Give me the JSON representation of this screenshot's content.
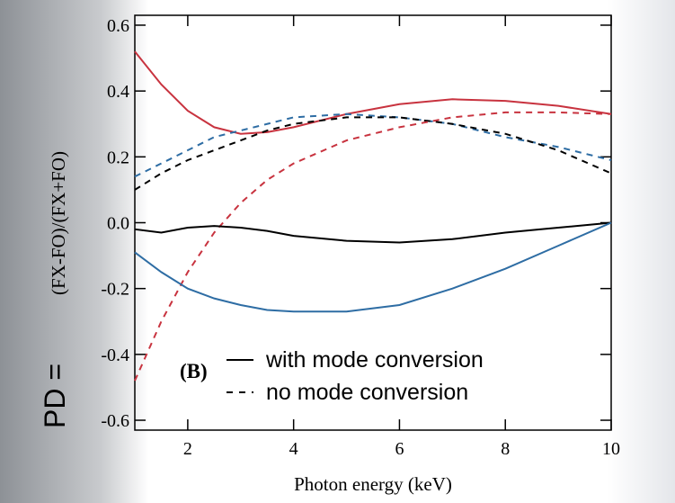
{
  "chart_data": {
    "type": "line",
    "x_label": "Photon energy (keV)",
    "y_label": "(FX-FO)/(FX+FO)",
    "y_prefix": "PD =",
    "annotation": "(B)",
    "legend": [
      {
        "label": "with mode conversion",
        "dash": "solid"
      },
      {
        "label": "no mode conversion",
        "dash": "dashed"
      }
    ],
    "x": [
      1,
      1.5,
      2,
      2.5,
      3,
      3.5,
      4,
      5,
      6,
      7,
      8,
      9,
      10
    ],
    "series": [
      {
        "color": "#c8333f",
        "dash": "solid",
        "values": [
          0.52,
          0.42,
          0.34,
          0.29,
          0.27,
          0.275,
          0.29,
          0.33,
          0.36,
          0.375,
          0.37,
          0.355,
          0.33
        ]
      },
      {
        "color": "#2e6da4",
        "dash": "dashed",
        "values": [
          0.14,
          0.18,
          0.22,
          0.26,
          0.28,
          0.3,
          0.32,
          0.33,
          0.32,
          0.3,
          0.26,
          0.23,
          0.19
        ]
      },
      {
        "color": "#000000",
        "dash": "dashed",
        "values": [
          0.1,
          0.15,
          0.19,
          0.22,
          0.25,
          0.28,
          0.3,
          0.32,
          0.32,
          0.3,
          0.27,
          0.22,
          0.15
        ]
      },
      {
        "color": "#c8333f",
        "dash": "dashed",
        "values": [
          -0.48,
          -0.3,
          -0.15,
          -0.03,
          0.06,
          0.13,
          0.18,
          0.25,
          0.29,
          0.32,
          0.335,
          0.335,
          0.33
        ]
      },
      {
        "color": "#000000",
        "dash": "solid",
        "values": [
          -0.02,
          -0.03,
          -0.015,
          -0.01,
          -0.015,
          -0.025,
          -0.04,
          -0.055,
          -0.06,
          -0.05,
          -0.03,
          -0.015,
          0.0
        ]
      },
      {
        "color": "#2e6da4",
        "dash": "solid",
        "values": [
          -0.09,
          -0.15,
          -0.2,
          -0.23,
          -0.25,
          -0.265,
          -0.27,
          -0.27,
          -0.25,
          -0.2,
          -0.14,
          -0.07,
          0.0
        ]
      }
    ],
    "xlim": [
      1,
      10
    ],
    "ylim": [
      -0.63,
      0.63
    ],
    "xticks": [
      2,
      4,
      6,
      8,
      10
    ],
    "yticks": [
      0.6,
      0.4,
      0.2,
      {
        "value": 0,
        "label": "0.0"
      },
      -0.2,
      -0.4,
      -0.6
    ]
  }
}
